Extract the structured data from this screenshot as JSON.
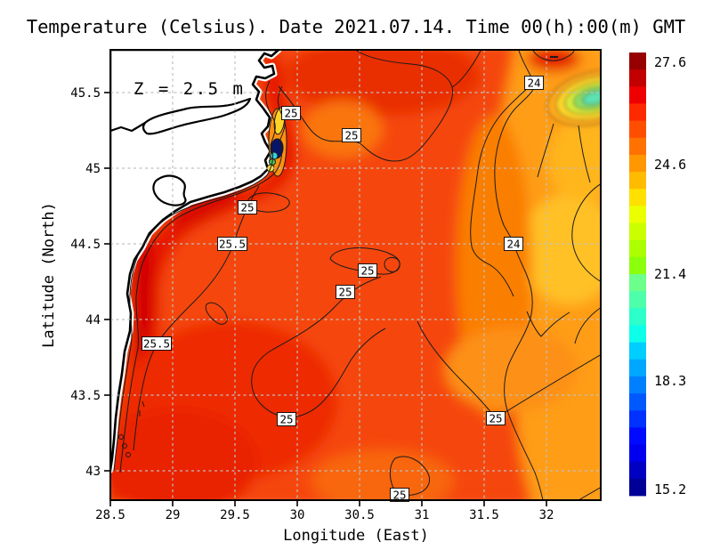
{
  "title": "Temperature (Celsius). Date 2021.07.14. Time 00(h):00(m) GMT",
  "depth_label": "Z = 2.5 m",
  "axes": {
    "x_label": "Longitude (East)",
    "y_label": "Latitude (North)",
    "x_ticks": [
      "28.5",
      "29",
      "29.5",
      "30",
      "30.5",
      "31",
      "31.5",
      "32"
    ],
    "y_ticks": [
      "45.5",
      "45",
      "44.5",
      "44",
      "43.5",
      "43"
    ]
  },
  "colorbar": {
    "tick_labels": [
      "27.6",
      "24.6",
      "21.4",
      "18.3",
      "15.2"
    ],
    "steps": [
      "#960000",
      "#C20000",
      "#EF0000",
      "#FF2900",
      "#FF4E00",
      "#FF7200",
      "#FF9700",
      "#FFBB00",
      "#FFE000",
      "#EBFF00",
      "#CBFF00",
      "#ABFF00",
      "#8CFF0C",
      "#6CFF8B",
      "#4DFFAA",
      "#2CFFCA",
      "#0DFFEA",
      "#00CEFF",
      "#00A7FF",
      "#0080FF",
      "#0059FF",
      "#0031FF",
      "#000AFF",
      "#0000EF",
      "#0000C3",
      "#000096"
    ]
  },
  "contour_labels": [
    "25",
    "25",
    "25",
    "25.5",
    "25",
    "25",
    "25.5",
    "25",
    "25",
    "25",
    "24",
    "24"
  ],
  "palette": {
    "sea_base": "#F5470A",
    "coastal_warm_band": "#E41501",
    "cool_region_east": "#FF9D14",
    "eddy_core": "#5BE2B0",
    "land": "#FFFFFF",
    "grid": "#C0C0C0",
    "depth_label_color": "#7D7D7D"
  },
  "chart_data": {
    "type": "heatmap",
    "subtype": "filled_contour_map",
    "title": "Temperature (Celsius). Date 2021.07.14. Time 00(h):00(m) GMT",
    "variable": "Sea water temperature",
    "units": "Celsius",
    "date": "2021.07.14",
    "time": "00(h):00(m) GMT",
    "depth_m": 2.5,
    "xlabel": "Longitude (East)",
    "ylabel": "Latitude (North)",
    "xlim": [
      28.5,
      32.44
    ],
    "ylim": [
      42.86,
      45.79
    ],
    "x_ticks": [
      28.5,
      29,
      29.5,
      30,
      30.5,
      31,
      31.5,
      32
    ],
    "y_ticks": [
      45.5,
      45,
      44.5,
      44,
      43.5,
      43
    ],
    "grid": true,
    "colorbar_range": [
      15.0,
      27.9
    ],
    "colorbar_ticks": [
      27.6,
      24.6,
      21.4,
      18.3,
      15.2
    ],
    "contour_levels_labeled": [
      24,
      25,
      25.5
    ],
    "approx_sst_grid": {
      "lon": [
        28.75,
        29.25,
        29.75,
        30.25,
        30.75,
        31.25,
        31.75,
        32.25
      ],
      "lat": [
        45.5,
        45.0,
        44.5,
        44.0,
        43.5,
        43.0
      ],
      "values": [
        [
          null,
          null,
          25.2,
          24.9,
          24.7,
          24.4,
          24.0,
          22.8
        ],
        [
          null,
          null,
          25.6,
          25.0,
          24.8,
          24.5,
          24.1,
          23.8
        ],
        [
          null,
          26.0,
          25.4,
          25.1,
          24.9,
          24.5,
          24.0,
          23.9
        ],
        [
          null,
          26.0,
          25.4,
          25.1,
          25.0,
          24.8,
          24.4,
          24.3
        ],
        [
          26.1,
          25.7,
          25.3,
          25.1,
          25.0,
          24.9,
          24.7,
          24.6
        ],
        [
          25.8,
          25.5,
          25.3,
          25.1,
          25.0,
          24.9,
          24.8,
          24.7
        ]
      ]
    },
    "features": [
      {
        "name": "cold-core eddy",
        "approx_lon": 32.3,
        "approx_lat": 45.6,
        "approx_core_temp": 21.5
      },
      {
        "name": "coastal upwelling patches near Danube delta",
        "approx_lon": 29.85,
        "approx_lat": 45.05,
        "approx_min_temp": 15.5
      },
      {
        "name": "warm coastal band along western shore",
        "approx_temp_range": "25.5-26.5"
      },
      {
        "name": "land mask western Black Sea coast",
        "fill": "white"
      }
    ],
    "legend_position": "right-colorbar"
  }
}
